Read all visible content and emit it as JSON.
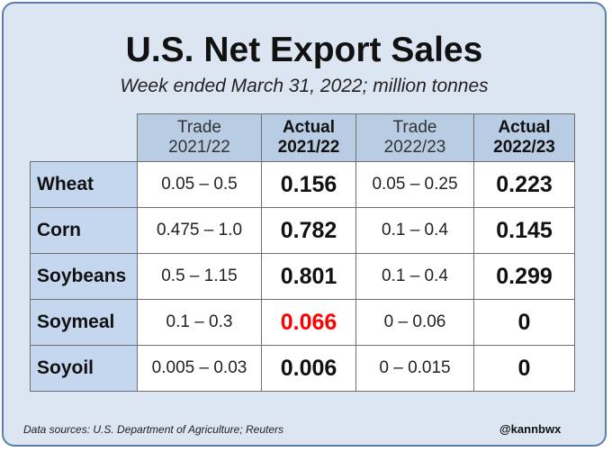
{
  "chart_data": {
    "type": "table",
    "title": "U.S. Net Export Sales",
    "subtitle": "Week ended March 31, 2022; million tonnes",
    "columns": [
      {
        "line1": "Trade",
        "line2": "2021/22",
        "emphasis": false
      },
      {
        "line1": "Actual",
        "line2": "2021/22",
        "emphasis": true
      },
      {
        "line1": "Trade",
        "line2": "2022/23",
        "emphasis": false
      },
      {
        "line1": "Actual",
        "line2": "2022/23",
        "emphasis": true
      }
    ],
    "rows": [
      {
        "label": "Wheat",
        "values": [
          "0.05 – 0.5",
          "0.156",
          "0.05 – 0.25",
          "0.223"
        ]
      },
      {
        "label": "Corn",
        "values": [
          "0.475 – 1.0",
          "0.782",
          "0.1 – 0.4",
          "0.145"
        ]
      },
      {
        "label": "Soybeans",
        "values": [
          "0.5 – 1.15",
          "0.801",
          "0.1 – 0.4",
          "0.299"
        ]
      },
      {
        "label": "Soymeal",
        "values": [
          "0.1 – 0.3",
          "0.066",
          "0 – 0.06",
          "0"
        ]
      },
      {
        "label": "Soyoil",
        "values": [
          "0.005 – 0.03",
          "0.006",
          "0 – 0.015",
          "0"
        ]
      }
    ],
    "highlight": {
      "row": "Soymeal",
      "column": "Actual 2021/22",
      "color": "#ff0000"
    },
    "source": "Data sources: U.S. Department of Agriculture; Reuters",
    "credit": "@kannbwx"
  },
  "colors": {
    "background": "#dce6f2",
    "header_fill": "#b8cce4",
    "row_label_fill": "#c5d7ee",
    "highlight": "#ff0000"
  }
}
